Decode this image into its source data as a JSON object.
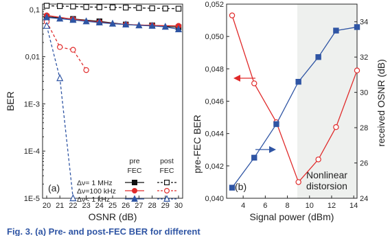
{
  "chart_data": [
    {
      "type": "line",
      "panel_label": "(a)",
      "xlabel": "OSNR (dB)",
      "ylabel": "BER",
      "y_scale": "log",
      "xlim": [
        20,
        30
      ],
      "ylim": [
        1e-05,
        0.13
      ],
      "x_ticks": [
        "20",
        "21",
        "22",
        "23",
        "24",
        "25",
        "26",
        "27",
        "28",
        "29",
        "30"
      ],
      "y_ticks": [
        {
          "value": 0.1,
          "label": "0,1"
        },
        {
          "value": 0.01,
          "label": "0,01"
        },
        {
          "value": 0.001,
          "label": "1E-3"
        },
        {
          "value": 0.0001,
          "label": "1E-4"
        },
        {
          "value": 1e-05,
          "label": "1E-5"
        }
      ],
      "legend_header": {
        "pre": "pre",
        "post": "post",
        "fec": "FEC"
      },
      "legend_rows": [
        {
          "label": "Δν=   1 MHz",
          "color": "#111111",
          "marker": "square"
        },
        {
          "label": "Δν=100 kHz",
          "color": "#e02a2a",
          "marker": "circle"
        },
        {
          "label": "Δν<   1 kHz",
          "color": "#2f55a4",
          "marker": "triangle"
        }
      ],
      "series": [
        {
          "label": "Δν=   1 MHz",
          "fec": "pre",
          "color": "#111111",
          "marker": "square",
          "filled": true,
          "dashed": false,
          "x": [
            20,
            22,
            24,
            26,
            28,
            30
          ],
          "y": [
            0.07,
            0.063,
            0.056,
            0.048,
            0.046,
            0.042
          ]
        },
        {
          "label": "Δν=   1 MHz",
          "fec": "post",
          "color": "#111111",
          "marker": "square",
          "filled": false,
          "dashed": true,
          "x": [
            20,
            21,
            22,
            23,
            24,
            25,
            26,
            27,
            28,
            29,
            30
          ],
          "y": [
            0.12,
            0.118,
            0.116,
            0.113,
            0.112,
            0.111,
            0.11,
            0.108,
            0.106,
            0.105,
            0.104
          ]
        },
        {
          "label": "Δν=100 kHz",
          "fec": "pre",
          "color": "#e02a2a",
          "marker": "circle",
          "filled": true,
          "dashed": false,
          "x": [
            20,
            22,
            24,
            26,
            28,
            30
          ],
          "y": [
            0.075,
            0.062,
            0.054,
            0.048,
            0.046,
            0.045
          ]
        },
        {
          "label": "Δν=100 kHz",
          "fec": "post",
          "color": "#e02a2a",
          "marker": "circle",
          "filled": false,
          "dashed": true,
          "x": [
            20,
            21,
            22,
            23
          ],
          "y": [
            0.055,
            0.016,
            0.014,
            0.0052
          ]
        },
        {
          "label": "Δν<   1 kHz",
          "fec": "pre",
          "color": "#2f55a4",
          "marker": "triangle",
          "filled": true,
          "dashed": false,
          "x": [
            20,
            21,
            22,
            23,
            24,
            25,
            26,
            27,
            28,
            29,
            30
          ],
          "y": [
            0.068,
            0.064,
            0.06,
            0.056,
            0.053,
            0.05,
            0.048,
            0.046,
            0.045,
            0.043,
            0.038
          ]
        },
        {
          "label": "Δν<   1 kHz",
          "fec": "post",
          "color": "#2f55a4",
          "marker": "triangle",
          "filled": false,
          "dashed": true,
          "x": [
            20,
            21,
            22
          ],
          "y": [
            0.045,
            0.0035,
            1e-05
          ]
        }
      ]
    },
    {
      "type": "line",
      "panel_label": "(b)",
      "xlabel": "Signal power (dBm)",
      "ylabel_left": "pre-FEC BER",
      "ylabel_right": "received OSNR (dB)",
      "xlim": [
        2.5,
        14.3
      ],
      "ylim_left": [
        0.04,
        0.052
      ],
      "ylim_right": [
        24,
        35
      ],
      "x_ticks": [
        "4",
        "6",
        "8",
        "10",
        "12",
        "14"
      ],
      "y_ticks_left": [
        "0,040",
        "0,042",
        "0,044",
        "0,046",
        "0,048",
        "0,050",
        "0,052"
      ],
      "y_ticks_right": [
        "24",
        "26",
        "28",
        "30",
        "32",
        "34"
      ],
      "shaded_region_x": [
        8.9,
        14.3
      ],
      "shaded_label": [
        "Nonlinear",
        "distorsion"
      ],
      "series": [
        {
          "name_hidden": "pre-FEC BER",
          "axis": "left",
          "color": "#e02a2a",
          "marker": "circle",
          "x": [
            3,
            5,
            7,
            9,
            10.8,
            12.4,
            14.3
          ],
          "y": [
            0.0513,
            0.0471,
            0.0447,
            0.041,
            0.0424,
            0.0444,
            0.0479
          ]
        },
        {
          "name_hidden": "received OSNR (dB)",
          "axis": "right",
          "color": "#2f55a4",
          "marker": "square",
          "x": [
            3,
            5,
            7,
            9,
            10.8,
            12.4,
            14.3
          ],
          "y": [
            24.6,
            26.3,
            28.2,
            30.6,
            32.0,
            33.5,
            33.7
          ]
        }
      ]
    }
  ],
  "caption_fragment": "Fig. 3. (a) Pre- and post-FEC BER for different"
}
